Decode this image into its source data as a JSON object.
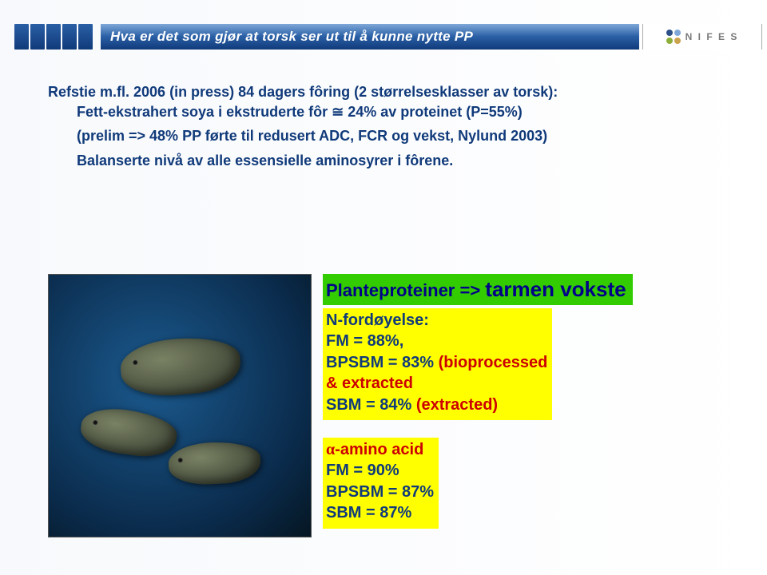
{
  "header": {
    "title": "Hva er det som gjør at torsk ser ut til å kunne nytte PP",
    "logo": "N I F E S",
    "bar_color": "#1a4b8c"
  },
  "reference": "Refstie m.fl. 2006 (in press) 84 dagers fôring (2 størrelsesklasser av torsk):",
  "bullets": {
    "line1a": "Fett-ekstrahert soya i ekstruderte fôr ",
    "line1b": " 24% av proteinet (P=55%)",
    "line2": "(prelim => 48% PP førte til redusert ADC, FCR og vekst, Nylund 2003)",
    "line3": "Balanserte nivå av alle essensielle aminosyrer i fôrene."
  },
  "green_band": {
    "prefix": "Planteproteiner => ",
    "emph": "tarmen vokste"
  },
  "yellow1": {
    "heading": "N-fordøyelse:",
    "l1_a": "FM = 88%,",
    "l2_a": "BPSBM = 83%",
    "l2_b": " (bioprocessed",
    "l3_a": "& extracted",
    "l4_a": "SBM = 84%",
    "l4_b": " (extracted)"
  },
  "yellow2": {
    "l1_sym": "α",
    "l1_a": "-amino acid",
    "l2_a": "FM = 90%",
    "l3_a": "BPSBM = 87%",
    "l4_a": "SBM = 87%"
  }
}
